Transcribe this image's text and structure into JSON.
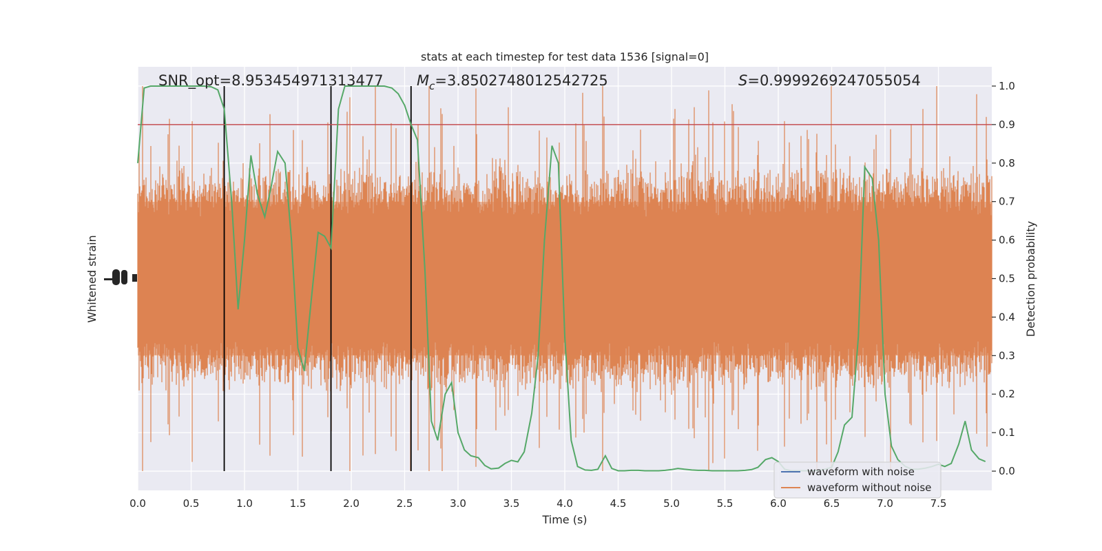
{
  "chart_data": {
    "type": "line",
    "title": "stats at each timestep for test data 1536 [signal=0]",
    "xlabel": "Time (s)",
    "ylabel_left": "Whitened strain",
    "ylabel_right": "Detection probability",
    "xlim": [
      0,
      8
    ],
    "ylim_right": [
      -0.05,
      1.05
    ],
    "x_ticks": [
      0.0,
      0.5,
      1.0,
      1.5,
      2.0,
      2.5,
      3.0,
      3.5,
      4.0,
      4.5,
      5.0,
      5.5,
      6.0,
      6.5,
      7.0,
      7.5
    ],
    "x_tick_labels": [
      "0.0",
      "0.5",
      "1.0",
      "1.5",
      "2.0",
      "2.5",
      "3.0",
      "3.5",
      "4.0",
      "4.5",
      "5.0",
      "5.5",
      "6.0",
      "6.5",
      "7.0",
      "7.5"
    ],
    "y_right_ticks": [
      0.0,
      0.1,
      0.2,
      0.3,
      0.4,
      0.5,
      0.6,
      0.7,
      0.8,
      0.9,
      1.0
    ],
    "y_right_tick_labels": [
      "0.0",
      "0.1",
      "0.2",
      "0.3",
      "0.4",
      "0.5",
      "0.6",
      "0.7",
      "0.8",
      "0.9",
      "1.0"
    ],
    "grid": true,
    "legend_position": "bottom-right",
    "annotations": {
      "snr": "SNR_opt=8.953454971313477",
      "mc": "=3.8502748012542725",
      "mc_symbol": "M",
      "mc_sub": "c",
      "s": "=0.9999269247055054",
      "s_symbol": "S"
    },
    "threshold": {
      "value": 0.9,
      "color": "#c44e52"
    },
    "vertical_lines_x": [
      0.81,
      1.81,
      2.56
    ],
    "series": [
      {
        "name": "waveform with noise",
        "color": "#4c72b0"
      },
      {
        "name": "waveform without noise",
        "color": "#dd8452"
      },
      {
        "color": "#55a868",
        "x": [
          0.0,
          0.06,
          0.12,
          0.19,
          0.25,
          0.31,
          0.38,
          0.44,
          0.5,
          0.56,
          0.62,
          0.69,
          0.75,
          0.81,
          0.88,
          0.94,
          1.0,
          1.06,
          1.12,
          1.19,
          1.25,
          1.31,
          1.38,
          1.44,
          1.5,
          1.56,
          1.62,
          1.69,
          1.75,
          1.81,
          1.88,
          1.94,
          2.0,
          2.06,
          2.12,
          2.19,
          2.25,
          2.31,
          2.38,
          2.44,
          2.5,
          2.56,
          2.62,
          2.69,
          2.75,
          2.81,
          2.88,
          2.94,
          3.0,
          3.06,
          3.12,
          3.19,
          3.25,
          3.31,
          3.38,
          3.44,
          3.5,
          3.56,
          3.62,
          3.69,
          3.75,
          3.81,
          3.88,
          3.94,
          4.0,
          4.06,
          4.12,
          4.19,
          4.25,
          4.31,
          4.38,
          4.44,
          4.5,
          4.56,
          4.62,
          4.69,
          4.75,
          4.81,
          4.88,
          4.94,
          5.0,
          5.06,
          5.12,
          5.19,
          5.25,
          5.31,
          5.38,
          5.44,
          5.5,
          5.56,
          5.62,
          5.69,
          5.75,
          5.81,
          5.88,
          5.94,
          6.0,
          6.06,
          6.12,
          6.19,
          6.25,
          6.31,
          6.38,
          6.44,
          6.5,
          6.56,
          6.62,
          6.69,
          6.75,
          6.81,
          6.88,
          6.94,
          7.0,
          7.06,
          7.12,
          7.19,
          7.25,
          7.31,
          7.38,
          7.44,
          7.5,
          7.56,
          7.62,
          7.69,
          7.75,
          7.81,
          7.88,
          7.94
        ],
        "values": [
          0.8,
          0.995,
          1.0,
          1.0,
          1.0,
          1.0,
          1.0,
          1.0,
          1.0,
          1.0,
          1.0,
          0.998,
          0.99,
          0.94,
          0.7,
          0.42,
          0.6,
          0.82,
          0.72,
          0.66,
          0.74,
          0.83,
          0.8,
          0.6,
          0.32,
          0.26,
          0.43,
          0.62,
          0.61,
          0.58,
          0.94,
          1.0,
          1.0,
          1.0,
          1.0,
          1.0,
          1.0,
          1.0,
          0.995,
          0.98,
          0.95,
          0.9,
          0.86,
          0.52,
          0.13,
          0.08,
          0.2,
          0.23,
          0.1,
          0.055,
          0.04,
          0.035,
          0.015,
          0.006,
          0.008,
          0.02,
          0.028,
          0.024,
          0.05,
          0.15,
          0.3,
          0.6,
          0.845,
          0.8,
          0.35,
          0.08,
          0.012,
          0.003,
          0.002,
          0.005,
          0.04,
          0.007,
          0.001,
          0.001,
          0.002,
          0.002,
          0.001,
          0.001,
          0.001,
          0.002,
          0.004,
          0.007,
          0.005,
          0.003,
          0.002,
          0.002,
          0.001,
          0.001,
          0.001,
          0.001,
          0.001,
          0.002,
          0.004,
          0.01,
          0.03,
          0.035,
          0.025,
          0.005,
          0.001,
          0.001,
          0.001,
          0.001,
          0.002,
          0.005,
          0.01,
          0.05,
          0.12,
          0.14,
          0.35,
          0.79,
          0.76,
          0.6,
          0.2,
          0.065,
          0.03,
          0.012,
          0.005,
          0.005,
          0.008,
          0.012,
          0.018,
          0.012,
          0.02,
          0.07,
          0.13,
          0.055,
          0.032,
          0.025
        ]
      }
    ]
  }
}
